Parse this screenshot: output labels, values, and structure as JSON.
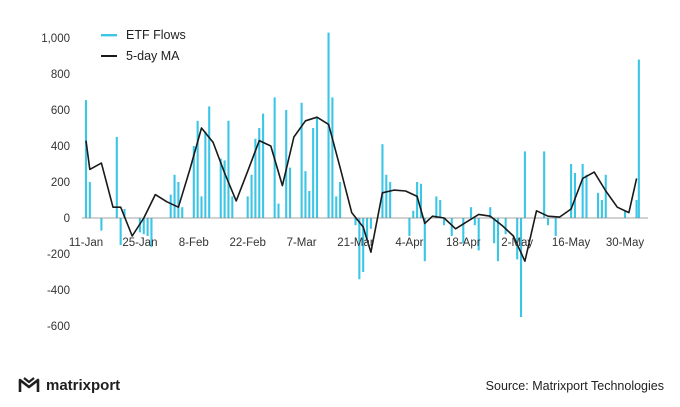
{
  "chart_data": {
    "type": "bar+line",
    "title": "",
    "xlabel": "",
    "ylabel": "",
    "ylim": [
      -650,
      1050
    ],
    "yticks": [
      -600,
      -400,
      -200,
      0,
      200,
      400,
      600,
      800,
      1000
    ],
    "ytick_labels": [
      "-600",
      "-400",
      "-200",
      "0",
      "200",
      "400",
      "600",
      "800",
      "1,000"
    ],
    "xticks": [
      "11-Jan",
      "25-Jan",
      "8-Feb",
      "22-Feb",
      "7-Mar",
      "21-Mar",
      "4-Apr",
      "18-Apr",
      "2-May",
      "16-May",
      "30-May"
    ],
    "xtick_day_index": [
      0,
      14,
      28,
      42,
      56,
      70,
      84,
      98,
      112,
      126,
      140
    ],
    "legend": [
      "ETF Flows",
      "5-day MA"
    ],
    "colors": {
      "bars": "#3cc6e6",
      "line": "#1a1a1a",
      "axis": "#888888"
    },
    "series": [
      {
        "name": "ETF Flows",
        "kind": "bar",
        "days": [
          0,
          1,
          3,
          4,
          7,
          8,
          9,
          10,
          11,
          14,
          15,
          16,
          17,
          18,
          21,
          22,
          23,
          24,
          25,
          28,
          29,
          30,
          31,
          32,
          35,
          36,
          37,
          38,
          39,
          42,
          43,
          44,
          45,
          46,
          49,
          50,
          51,
          52,
          53,
          56,
          57,
          58,
          59,
          60,
          63,
          64,
          65,
          66,
          67,
          70,
          71,
          72,
          73,
          74,
          77,
          78,
          79,
          80,
          81,
          84,
          85,
          86,
          87,
          88,
          91,
          92,
          93,
          94,
          95,
          98,
          99,
          100,
          101,
          102,
          105,
          106,
          107,
          108,
          109,
          112,
          113,
          114,
          115,
          116,
          119,
          120,
          121,
          122,
          123,
          126,
          127,
          128,
          129,
          130,
          133,
          134,
          135,
          136,
          137,
          140,
          141,
          142,
          143
        ],
        "values": [
          655,
          200,
          0,
          -70,
          0,
          450,
          -150,
          50,
          0,
          -80,
          -90,
          -100,
          -160,
          0,
          0,
          130,
          240,
          200,
          60,
          400,
          540,
          120,
          480,
          620,
          330,
          320,
          540,
          120,
          0,
          120,
          240,
          440,
          500,
          580,
          670,
          80,
          0,
          600,
          280,
          640,
          260,
          150,
          500,
          560,
          1030,
          670,
          120,
          200,
          0,
          -40,
          -340,
          -300,
          -120,
          -60,
          410,
          240,
          200,
          0,
          0,
          -100,
          40,
          200,
          190,
          -240,
          120,
          100,
          -40,
          0,
          -100,
          -140,
          0,
          60,
          -40,
          -180,
          60,
          -140,
          -240,
          0,
          -90,
          -230,
          -550,
          370,
          0,
          0,
          370,
          -40,
          0,
          -100,
          0,
          300,
          250,
          0,
          300,
          240,
          140,
          100,
          240,
          0,
          0,
          40,
          0,
          0,
          100
        ],
        "extra_bar": {
          "day": 143.6,
          "value": 880
        }
      },
      {
        "name": "5-day MA",
        "kind": "line",
        "days": [
          0,
          1,
          4,
          7,
          9,
          12,
          15,
          18,
          21,
          24,
          27,
          30,
          33,
          36,
          39,
          42,
          45,
          48,
          51,
          54,
          57,
          60,
          63,
          66,
          69,
          72,
          74,
          77,
          80,
          83,
          86,
          88,
          90,
          93,
          96,
          99,
          102,
          105,
          108,
          111,
          114,
          117,
          120,
          123,
          126,
          129,
          132,
          135,
          138,
          141,
          143
        ],
        "values": [
          430,
          270,
          305,
          60,
          60,
          -100,
          0,
          130,
          90,
          60,
          270,
          500,
          420,
          250,
          95,
          260,
          430,
          400,
          180,
          450,
          540,
          560,
          520,
          280,
          30,
          -50,
          -190,
          140,
          155,
          150,
          120,
          -30,
          10,
          0,
          -60,
          -20,
          20,
          10,
          -40,
          -100,
          -240,
          40,
          10,
          5,
          50,
          220,
          255,
          150,
          60,
          30,
          220
        ]
      }
    ]
  },
  "footer": {
    "brand": "matrixport",
    "source": "Source: Matrixport Technologies"
  }
}
